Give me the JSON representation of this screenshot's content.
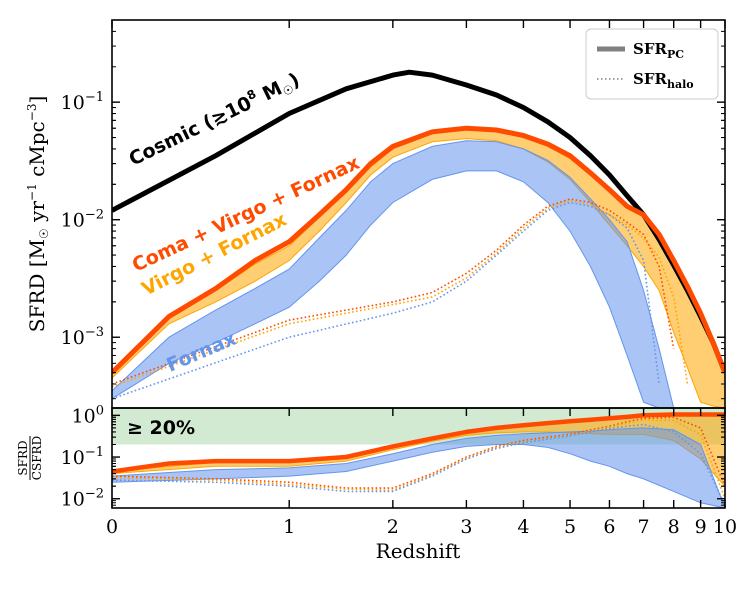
{
  "chart_data": [
    {
      "type": "line",
      "panel": "top",
      "ylabel_prefix": "SFRD [M",
      "ylabel_mid": " yr",
      "ylabel_mid2": " cMpc",
      "ylabel_exp1": "−1",
      "ylabel_exp2": "−3",
      "ylabel_close": "]",
      "yscale": "log",
      "ylim": [
        0.00025,
        0.5
      ],
      "yticks": [
        {
          "value": 0.001,
          "base": "10",
          "exp": "−3"
        },
        {
          "value": 0.01,
          "base": "10",
          "exp": "−2"
        },
        {
          "value": 0.1,
          "base": "10",
          "exp": "−1"
        }
      ],
      "legend": {
        "placement": "top-right",
        "entries": [
          {
            "label": "SFR",
            "sub": "PC",
            "style": "solid"
          },
          {
            "label": "SFR",
            "sub": "halo",
            "style": "dotted"
          }
        ]
      },
      "series": [
        {
          "name": "Cosmic (≳10^8 M☉)",
          "label_text": "Cosmic (≳10",
          "label_exp": "8",
          "label_unit": " M",
          "color": "#000000",
          "style": "solid",
          "x": [
            0,
            0.5,
            1,
            1.5,
            2,
            2.2,
            2.5,
            3,
            3.5,
            4,
            4.5,
            5,
            5.5,
            6,
            6.5,
            7,
            7.5,
            8,
            8.5,
            9,
            9.5,
            10
          ],
          "y": [
            0.012,
            0.035,
            0.08,
            0.13,
            0.17,
            0.18,
            0.17,
            0.14,
            0.115,
            0.09,
            0.068,
            0.05,
            0.035,
            0.024,
            0.016,
            0.011,
            0.0068,
            0.0041,
            0.0025,
            0.0015,
            0.0009,
            0.0005
          ]
        },
        {
          "name": "Coma + Virgo + Fornax",
          "color": "#ff4b00",
          "style": "solid",
          "x": [
            0,
            0.25,
            0.5,
            0.75,
            1,
            1.25,
            1.5,
            1.75,
            2,
            2.5,
            3,
            3.5,
            4,
            4.5,
            5,
            5.5,
            6,
            6.5,
            7,
            7.5,
            8,
            8.5,
            9,
            9.5,
            10
          ],
          "y": [
            0.0005,
            0.0015,
            0.0026,
            0.0045,
            0.0065,
            0.011,
            0.018,
            0.03,
            0.042,
            0.056,
            0.06,
            0.058,
            0.052,
            0.044,
            0.035,
            0.025,
            0.018,
            0.013,
            0.011,
            0.0075,
            0.0045,
            0.0027,
            0.0016,
            0.0009,
            0.0005
          ]
        },
        {
          "name": "Virgo + Fornax",
          "color": "#ffa500",
          "style": "band",
          "x": [
            0,
            0.25,
            0.5,
            0.75,
            1,
            1.25,
            1.5,
            1.75,
            2,
            2.5,
            3,
            3.5,
            4,
            4.5,
            5,
            5.5,
            6,
            6.5,
            7,
            7.5,
            8,
            8.5,
            9,
            9.5,
            10
          ],
          "y_low": [
            0.00045,
            0.0013,
            0.002,
            0.003,
            0.0045,
            0.008,
            0.014,
            0.024,
            0.034,
            0.046,
            0.049,
            0.047,
            0.04,
            0.031,
            0.022,
            0.014,
            0.009,
            0.006,
            0.004,
            0.0025,
            0.0011,
            0.00055,
            0.00028,
            0.00026,
            0.00025
          ],
          "y_high": [
            0.0005,
            0.0015,
            0.0025,
            0.0042,
            0.006,
            0.0105,
            0.017,
            0.028,
            0.04,
            0.054,
            0.058,
            0.056,
            0.05,
            0.042,
            0.033,
            0.024,
            0.017,
            0.013,
            0.011,
            0.0075,
            0.0045,
            0.0026,
            0.0015,
            0.0009,
            0.0005
          ]
        },
        {
          "name": "Fornax",
          "color": "#6495ed",
          "style": "band",
          "x": [
            0,
            0.25,
            0.5,
            0.75,
            1,
            1.25,
            1.5,
            1.75,
            2,
            2.5,
            3,
            3.5,
            4,
            4.5,
            5,
            5.5,
            6,
            6.5,
            7,
            7.5,
            8
          ],
          "y_low": [
            0.0003,
            0.0006,
            0.0009,
            0.0013,
            0.0018,
            0.003,
            0.005,
            0.009,
            0.014,
            0.022,
            0.026,
            0.026,
            0.021,
            0.014,
            0.008,
            0.004,
            0.0018,
            0.0007,
            0.00028,
            0.00025,
            0.00025
          ],
          "y_high": [
            0.00035,
            0.001,
            0.0017,
            0.0026,
            0.0038,
            0.007,
            0.012,
            0.021,
            0.03,
            0.042,
            0.047,
            0.046,
            0.04,
            0.032,
            0.023,
            0.015,
            0.01,
            0.0065,
            0.0025,
            0.0008,
            0.00025
          ]
        },
        {
          "name": "Coma + Virgo + Fornax (halo)",
          "color": "#ff4b00",
          "style": "dotted",
          "x": [
            0,
            1,
            2,
            2.5,
            3,
            3.5,
            4,
            4.5,
            5,
            5.5,
            6,
            6.5,
            7,
            7.5,
            8
          ],
          "y": [
            0.0004,
            0.0014,
            0.002,
            0.0024,
            0.0035,
            0.0055,
            0.009,
            0.013,
            0.015,
            0.014,
            0.012,
            0.0095,
            0.0075,
            0.004,
            0.0008
          ]
        },
        {
          "name": "Virgo + Fornax (halo)",
          "color": "#ffa500",
          "style": "dotted",
          "x": [
            0,
            1,
            2,
            2.5,
            3,
            3.5,
            4,
            4.5,
            5,
            5.5,
            6,
            6.5,
            7,
            7.5,
            8,
            8.5
          ],
          "y": [
            0.00038,
            0.0013,
            0.0019,
            0.0022,
            0.0032,
            0.0052,
            0.0085,
            0.0125,
            0.0145,
            0.0135,
            0.011,
            0.009,
            0.007,
            0.0048,
            0.0022,
            0.0004
          ]
        },
        {
          "name": "Fornax (halo)",
          "color": "#6495ed",
          "style": "dotted",
          "x": [
            0,
            1,
            2,
            2.5,
            3,
            3.5,
            4,
            4.5,
            5,
            5.5,
            6,
            6.5,
            7,
            7.5
          ],
          "y": [
            0.0003,
            0.001,
            0.0016,
            0.002,
            0.003,
            0.005,
            0.008,
            0.012,
            0.014,
            0.013,
            0.011,
            0.0085,
            0.0045,
            0.0004
          ]
        }
      ]
    },
    {
      "type": "line",
      "panel": "bottom",
      "ylabel_num": "SFRD",
      "ylabel_den": "CSFRD",
      "xlabel": "Redshift",
      "xscale": "log(1+z)",
      "xlim": [
        0,
        10
      ],
      "xticks": [
        "0",
        "1",
        "2",
        "3",
        "4",
        "5",
        "6",
        "7",
        "8",
        "9",
        "10"
      ],
      "yscale": "log",
      "ylim": [
        0.006,
        1.5
      ],
      "yticks": [
        {
          "value": 0.01,
          "base": "10",
          "exp": "−2"
        },
        {
          "value": 0.1,
          "base": "10",
          "exp": "−1"
        },
        {
          "value": 1,
          "base": "10",
          "exp": "0"
        }
      ],
      "threshold_band": {
        "label": "≥ 20%",
        "y_low": 0.2,
        "y_high": 1.5,
        "color": "#bfe0bf"
      },
      "series": [
        {
          "name": "Coma + Virgo + Fornax",
          "color": "#ff4b00",
          "style": "solid",
          "x": [
            0,
            0.25,
            0.5,
            1,
            1.5,
            2,
            2.5,
            3,
            3.5,
            4,
            4.5,
            5,
            5.5,
            6,
            6.5,
            7,
            8,
            10
          ],
          "y": [
            0.045,
            0.07,
            0.08,
            0.08,
            0.1,
            0.18,
            0.28,
            0.4,
            0.5,
            0.58,
            0.65,
            0.72,
            0.78,
            0.85,
            0.92,
            1.0,
            1.05,
            1.05
          ]
        },
        {
          "name": "Virgo + Fornax",
          "color": "#ffa500",
          "style": "band",
          "x": [
            0,
            0.5,
            1,
            1.5,
            2,
            2.5,
            3,
            3.5,
            4,
            4.5,
            5,
            6,
            7,
            8,
            9,
            10
          ],
          "y_low": [
            0.04,
            0.06,
            0.06,
            0.08,
            0.15,
            0.24,
            0.33,
            0.38,
            0.4,
            0.4,
            0.38,
            0.35,
            0.35,
            0.25,
            0.09,
            0.02
          ],
          "y_high": [
            0.045,
            0.075,
            0.078,
            0.1,
            0.18,
            0.28,
            0.4,
            0.5,
            0.58,
            0.65,
            0.72,
            0.85,
            1.0,
            1.05,
            1.05,
            1.05
          ]
        },
        {
          "name": "Fornax",
          "color": "#6495ed",
          "style": "band",
          "x": [
            0,
            0.5,
            1,
            1.5,
            2,
            2.5,
            3,
            3.5,
            4,
            4.5,
            5,
            5.5,
            6,
            6.5,
            7,
            8,
            9,
            10
          ],
          "y_low": [
            0.025,
            0.03,
            0.035,
            0.045,
            0.08,
            0.13,
            0.18,
            0.2,
            0.2,
            0.17,
            0.12,
            0.08,
            0.06,
            0.04,
            0.03,
            0.015,
            0.008,
            0.006
          ],
          "y_high": [
            0.035,
            0.05,
            0.055,
            0.07,
            0.12,
            0.2,
            0.28,
            0.33,
            0.36,
            0.38,
            0.4,
            0.42,
            0.45,
            0.48,
            0.5,
            0.45,
            0.2,
            0.006
          ]
        },
        {
          "name": "Coma + Virgo + Fornax (halo)",
          "color": "#ff4b00",
          "style": "dotted",
          "x": [
            0,
            0.5,
            1,
            1.5,
            2,
            2.5,
            3,
            3.5,
            4,
            4.5,
            5,
            5.5,
            6,
            6.5,
            7,
            8,
            9,
            10
          ],
          "y": [
            0.035,
            0.03,
            0.025,
            0.018,
            0.018,
            0.04,
            0.1,
            0.18,
            0.25,
            0.3,
            0.35,
            0.45,
            0.55,
            0.7,
            0.85,
            0.9,
            0.5,
            0.02
          ]
        },
        {
          "name": "Virgo + Fornax (halo)",
          "color": "#ffa500",
          "style": "dotted",
          "x": [
            0,
            0.5,
            1,
            1.5,
            2,
            2.5,
            3,
            3.5,
            4,
            4.5,
            5,
            5.5,
            6,
            6.5,
            7,
            8,
            9,
            10
          ],
          "y": [
            0.032,
            0.028,
            0.022,
            0.017,
            0.016,
            0.037,
            0.095,
            0.17,
            0.23,
            0.28,
            0.33,
            0.42,
            0.52,
            0.65,
            0.78,
            0.75,
            0.35,
            0.01
          ]
        },
        {
          "name": "Fornax (halo)",
          "color": "#6495ed",
          "style": "dotted",
          "x": [
            0,
            0.5,
            1,
            1.5,
            2,
            2.5,
            3,
            3.5,
            4,
            4.5,
            5,
            5.5,
            6,
            6.5,
            7,
            8,
            9,
            10
          ],
          "y": [
            0.028,
            0.025,
            0.02,
            0.015,
            0.015,
            0.035,
            0.09,
            0.16,
            0.22,
            0.27,
            0.32,
            0.4,
            0.48,
            0.55,
            0.6,
            0.4,
            0.12,
            0.007
          ]
        }
      ]
    }
  ]
}
